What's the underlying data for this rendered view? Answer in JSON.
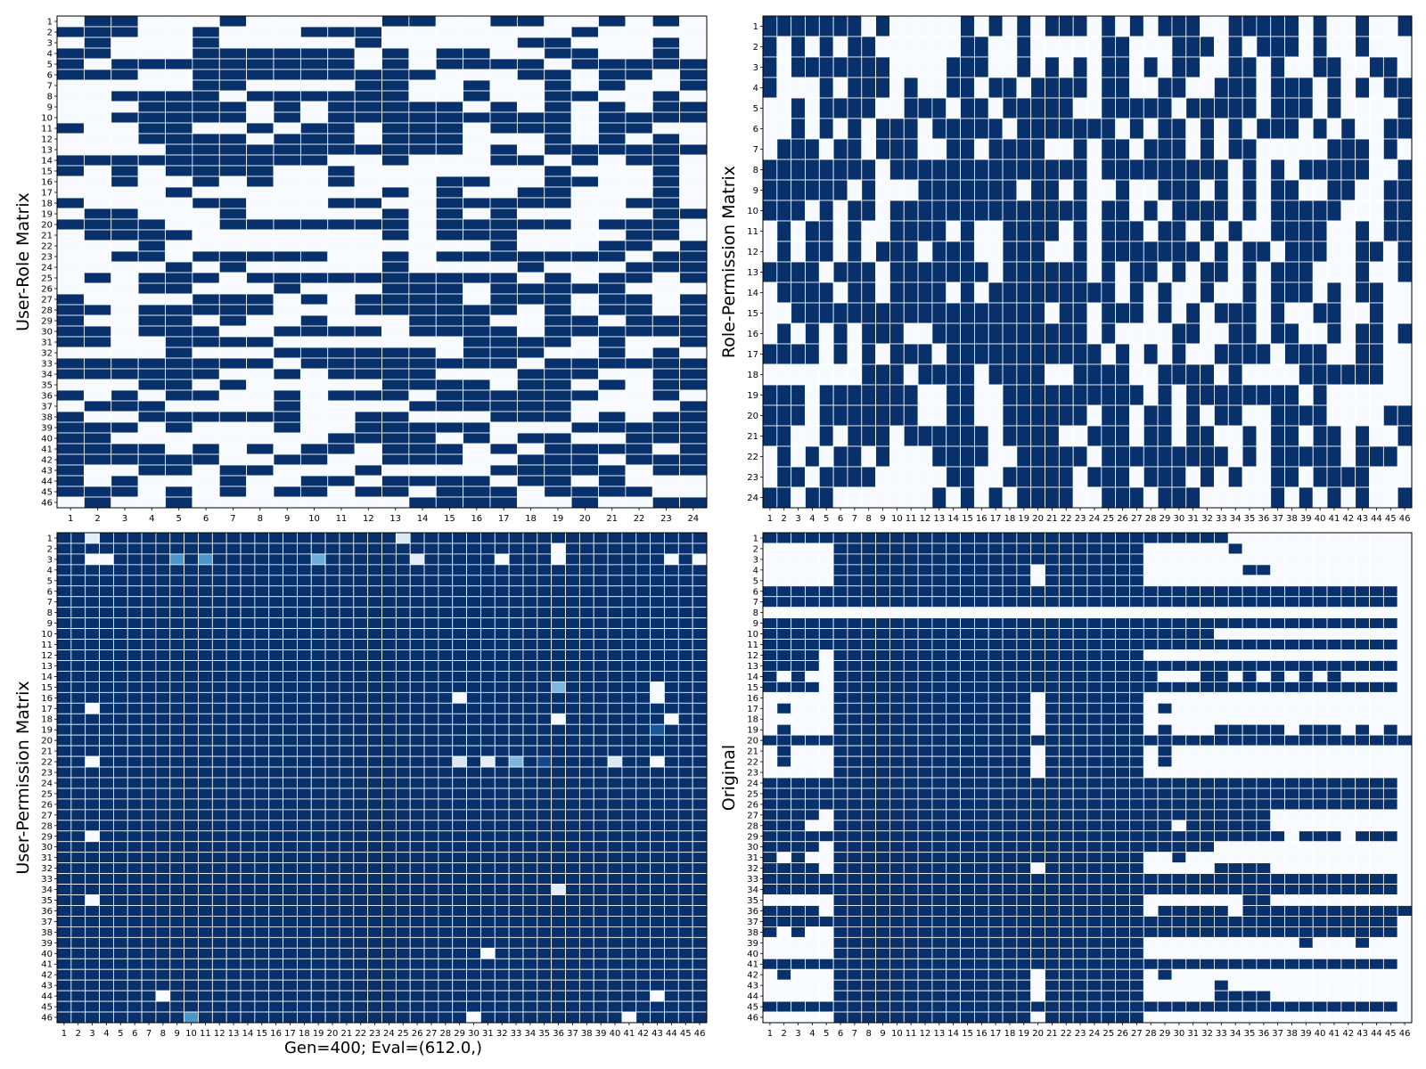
{
  "figure_caption": "Gen=400; Eval=(612.0,)",
  "chart_data": [
    {
      "type": "heatmap",
      "ylabel": "User-Role Matrix",
      "rows": 46,
      "cols": 24,
      "colormap": "Blues",
      "grid": true,
      "matrix": [
        "011000100000110011001010",
        "111001000111000000010000",
        "010001000001000001100010",
        "110001111110101100110010",
        "101111111110101111011111",
        "111001111111110001101101",
        "000001100001100100101001",
        "001111011111100100110010",
        "000111101011111010101011",
        "001111101011111111101111",
        "100110010110111011101100",
        "000111101110111000101010",
        "000011111111111010111111",
        "111111111100100011010110",
        "101011110010000000100010",
        "001001010010001100110010",
        "000010000000101001100010",
        "100001100011001111100110",
        "011000100000101010000011",
        "111100111111101111101110",
        "011110000000101110000110",
        "000100000000000010001101",
        "001101111100101111111011",
        "000010100000100001000111",
        "010111011111111110101101",
        "000110001000111011111000",
        "100001110101111011101101",
        "110111110001111110101101",
        "100110100100011100110111",
        "110111001111011110111111",
        "110011110000000111101001",
        "000010001111110111001010",
        "111111110111111110111111",
        "111111001011110001110011",
        "000110100000111101101011",
        "101011001011101111110010",
        "011100001000011111100001",
        "100111111001100011101011",
        "111010001001111100011111",
        "110000000011110101100111",
        "111101010110111010111101",
        "111111001100111001110111",
        "100110110001000011111011",
        "101000100110111101101000",
        "111010101101101110111100",
        "010010000000011110010011"
      ],
      "xticks": [
        "1",
        "2",
        "3",
        "4",
        "5",
        "6",
        "7",
        "8",
        "9",
        "10",
        "11",
        "12",
        "13",
        "14",
        "15",
        "16",
        "17",
        "18",
        "19",
        "20",
        "21",
        "22",
        "23",
        "24"
      ],
      "yticks": [
        "1",
        "2",
        "3",
        "4",
        "5",
        "6",
        "7",
        "8",
        "9",
        "10",
        "11",
        "12",
        "13",
        "14",
        "15",
        "16",
        "17",
        "18",
        "19",
        "20",
        "21",
        "22",
        "23",
        "24",
        "25",
        "26",
        "27",
        "28",
        "29",
        "30",
        "31",
        "32",
        "33",
        "34",
        "35",
        "36",
        "37",
        "38",
        "39",
        "40",
        "41",
        "42",
        "43",
        "44",
        "45",
        "46"
      ]
    },
    {
      "type": "heatmap",
      "ylabel": "Role-Permission Matrix",
      "rows": 24,
      "cols": 46,
      "colormap": "Blues",
      "grid": true,
      "matrix": [
        "1111111010000010101011101010111001111101001001",
        "1010101100000011001000001100011101011101001000",
        "1011111110000111001010101101011001101001100110",
        "1000101110100110110111101100110011101110101011",
        "0010111100111011011111001111101111101110100001",
        "0010101011101111101111111010110101011101010011",
        "0111011011100110111100101101110101100000111010",
        "1111111101111111111111101111111110101011111001",
        "1111110100011111110110100100111010101100110011",
        "1110101101111111111111101101011110101111100011",
        "0101101001111010011110101110110101001111001011",
        "0101101011101110011100101111111010110111001101",
        "1111011101111111011111101011010110101110001001",
        "0111101101111010111111111010100100101110101100",
        "0011111111111111111101101110101011101001100100",
        "0101010111001111111111101000011001101100101101",
        "1111010101110111111111110101010011110111001100",
        "0000000111011110111100111100111101000011111100",
        "1110111111100110011111111110101111111101000000",
        "1110111111100110011111101101101011001111000011",
        "1100101110111111011110011101101100101101101001",
        "0101011010001111001111101111111110101111101110",
        "0110111100000110011111011101110101001101111000",
        "1101100000001010101111001110111000001010101001"
      ],
      "xticks": [
        "1",
        "2",
        "3",
        "4",
        "5",
        "6",
        "7",
        "8",
        "9",
        "10",
        "11",
        "12",
        "13",
        "14",
        "15",
        "16",
        "17",
        "18",
        "19",
        "20",
        "21",
        "22",
        "23",
        "24",
        "25",
        "26",
        "27",
        "28",
        "29",
        "30",
        "31",
        "32",
        "33",
        "34",
        "35",
        "36",
        "37",
        "38",
        "39",
        "40",
        "41",
        "42",
        "43",
        "44",
        "45",
        "46"
      ],
      "yticks": [
        "1",
        "2",
        "3",
        "4",
        "5",
        "6",
        "7",
        "8",
        "9",
        "10",
        "11",
        "12",
        "13",
        "14",
        "15",
        "16",
        "17",
        "18",
        "19",
        "20",
        "21",
        "22",
        "23",
        "24"
      ]
    },
    {
      "type": "heatmap",
      "ylabel": "User-Permission Matrix",
      "rows": 46,
      "cols": 46,
      "colormap": "Blues",
      "grid": true,
      "base": "full",
      "cells": [
        {
          "row": 1,
          "col": 3,
          "value": 0.1
        },
        {
          "row": 1,
          "col": 25,
          "value": 0.15
        },
        {
          "row": 3,
          "col": 3,
          "value": 0.0
        },
        {
          "row": 3,
          "col": 4,
          "value": 0.0
        },
        {
          "row": 3,
          "col": 9,
          "value": 0.6
        },
        {
          "row": 3,
          "col": 11,
          "value": 0.6
        },
        {
          "row": 3,
          "col": 19,
          "value": 0.5
        },
        {
          "row": 3,
          "col": 26,
          "value": 0.1
        },
        {
          "row": 3,
          "col": 32,
          "value": 0.0
        },
        {
          "row": 3,
          "col": 36,
          "value": 0.0
        },
        {
          "row": 3,
          "col": 44,
          "value": 0.0
        },
        {
          "row": 3,
          "col": 46,
          "value": 0.0
        },
        {
          "row": 2,
          "col": 36,
          "value": 0.0
        },
        {
          "row": 15,
          "col": 36,
          "value": 0.45
        },
        {
          "row": 15,
          "col": 43,
          "value": 0.0
        },
        {
          "row": 16,
          "col": 29,
          "value": 0.0
        },
        {
          "row": 16,
          "col": 43,
          "value": 0.0
        },
        {
          "row": 17,
          "col": 3,
          "value": 0.0
        },
        {
          "row": 18,
          "col": 36,
          "value": 0.0
        },
        {
          "row": 18,
          "col": 44,
          "value": 0.0
        },
        {
          "row": 19,
          "col": 43,
          "value": 0.85
        },
        {
          "row": 22,
          "col": 3,
          "value": 0.0
        },
        {
          "row": 22,
          "col": 29,
          "value": 0.15
        },
        {
          "row": 22,
          "col": 31,
          "value": 0.1
        },
        {
          "row": 22,
          "col": 33,
          "value": 0.45
        },
        {
          "row": 22,
          "col": 35,
          "value": 0.9
        },
        {
          "row": 22,
          "col": 40,
          "value": 0.15
        },
        {
          "row": 22,
          "col": 43,
          "value": 0.0
        },
        {
          "row": 29,
          "col": 3,
          "value": 0.0
        },
        {
          "row": 34,
          "col": 36,
          "value": 0.1
        },
        {
          "row": 35,
          "col": 3,
          "value": 0.0
        },
        {
          "row": 40,
          "col": 31,
          "value": 0.0
        },
        {
          "row": 44,
          "col": 8,
          "value": 0.0
        },
        {
          "row": 44,
          "col": 43,
          "value": 0.0
        },
        {
          "row": 46,
          "col": 10,
          "value": 0.6
        },
        {
          "row": 46,
          "col": 30,
          "value": 0.0
        },
        {
          "row": 46,
          "col": 41,
          "value": 0.0
        }
      ],
      "xticks": [
        "1",
        "2",
        "3",
        "4",
        "5",
        "6",
        "7",
        "8",
        "9",
        "10",
        "11",
        "12",
        "13",
        "14",
        "15",
        "16",
        "17",
        "18",
        "19",
        "20",
        "21",
        "22",
        "23",
        "24",
        "25",
        "26",
        "27",
        "28",
        "29",
        "30",
        "31",
        "32",
        "33",
        "34",
        "35",
        "36",
        "37",
        "38",
        "39",
        "40",
        "41",
        "42",
        "43",
        "44",
        "45",
        "46"
      ],
      "yticks": [
        "1",
        "2",
        "3",
        "4",
        "5",
        "6",
        "7",
        "8",
        "9",
        "10",
        "11",
        "12",
        "13",
        "14",
        "15",
        "16",
        "17",
        "18",
        "19",
        "20",
        "21",
        "22",
        "23",
        "24",
        "25",
        "26",
        "27",
        "28",
        "29",
        "30",
        "31",
        "32",
        "33",
        "34",
        "35",
        "36",
        "37",
        "38",
        "39",
        "40",
        "41",
        "42",
        "43",
        "44",
        "45",
        "46"
      ]
    },
    {
      "type": "heatmap",
      "ylabel": "Original",
      "rows": 46,
      "cols": 46,
      "colormap": "Blues",
      "grid": true,
      "matrix": [
        "1111111111111111111111111111111110000000000000",
        "0000011111111111111111111110000001000000000000",
        "0000011111111111111111111110000000000000000000",
        "0000011111111111111011111110000000110000000000",
        "0000011111111111111011111110000000000000000000",
        "1111111111111111111111111111111111111111111110",
        "1111111111111111111111111111111111111111111110",
        "0000000000000000000000000000000000000000000000",
        "1111111111111111111111111111111111111111111110",
        "1111111111111111111111111111111100000000000000",
        "1111111111111111111111111111111111111111111110",
        "1111011111111111111111111110000000000000000000",
        "1111011111111111111111111111111111111111111110",
        "1010011111111111111111111111000110101010100000",
        "1111011111111111111111111111111111111111111110",
        "0000011111111111111011111110000000000000000000",
        "0100011111111111111011111110100000000000000000",
        "0000011111111111111011111110000000000000000000",
        "0100011111111111111011111110100011111011101010",
        "1111111111111111111111111111111111111111111111",
        "0100011111111111111011111110100000000000000000",
        "0100011111111111111011111110100000000000000000",
        "0000011111111111111011111110000000000000000000",
        "1111111111111111111111111111111111111111111110",
        "1111111111111111111111111111111111111111111110",
        "1111111111111111111111111111111111111111111110",
        "1111011111111111111111111111111111110000000000",
        "1110011111111111111111111111101111110000000000",
        "1111111111111111111111111111111111111011101110",
        "1111011111111111111111111111111100000000000000",
        "1010011111111111111111111110010000000000000000",
        "1111011111111111111011111110000011110000000000",
        "1111111111111111111111111111111111111111111110",
        "1111111111111111111111111111111111111111111110",
        "0000011111111111111111111110000000110000000000",
        "1111011111111111111111111110111110111111111111",
        "1111111111111111111111111111111111111111111110",
        "1010011111111111111111111111111111111111111110",
        "0000011111111111111111111110000000000010001000",
        "0000011111111111111111111110000000000000000000",
        "1111111111111111111111111111111111111111111110",
        "0100011111111111111011111110100000000000000000",
        "0000011111111111111011111110000010000000000000",
        "0000011111111111111011111110000011110000000000",
        "1111111111111111111111111111111111111111111110",
        "0000011111111111111011111110000000000000000000"
      ],
      "xticks": [
        "1",
        "2",
        "3",
        "4",
        "5",
        "6",
        "7",
        "8",
        "9",
        "10",
        "11",
        "12",
        "13",
        "14",
        "15",
        "16",
        "17",
        "18",
        "19",
        "20",
        "21",
        "22",
        "23",
        "24",
        "25",
        "26",
        "27",
        "28",
        "29",
        "30",
        "31",
        "32",
        "33",
        "34",
        "35",
        "36",
        "37",
        "38",
        "39",
        "40",
        "41",
        "42",
        "43",
        "44",
        "45",
        "46"
      ],
      "yticks": [
        "1",
        "2",
        "3",
        "4",
        "5",
        "6",
        "7",
        "8",
        "9",
        "10",
        "11",
        "12",
        "13",
        "14",
        "15",
        "16",
        "17",
        "18",
        "19",
        "20",
        "21",
        "22",
        "23",
        "24",
        "25",
        "26",
        "27",
        "28",
        "29",
        "30",
        "31",
        "32",
        "33",
        "34",
        "35",
        "36",
        "37",
        "38",
        "39",
        "40",
        "41",
        "42",
        "43",
        "44",
        "45",
        "46"
      ]
    }
  ],
  "colors": {
    "empty": "#f7fbff",
    "full": "#08306b",
    "grid": "#ffffff",
    "frame": "#000000"
  }
}
